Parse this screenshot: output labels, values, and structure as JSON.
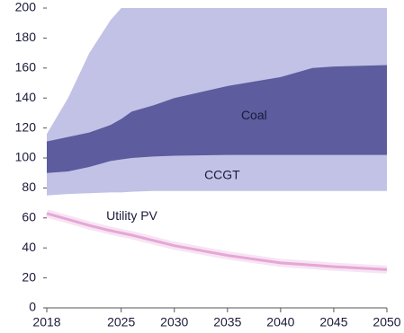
{
  "chart_data": {
    "type": "range_area",
    "x": [
      2018,
      2020,
      2022,
      2024,
      2025,
      2026,
      2028,
      2030,
      2035,
      2040,
      2043,
      2045,
      2050
    ],
    "series": [
      {
        "name": "CCGT",
        "color": "#c2c2e6",
        "low": [
          75,
          76,
          76.5,
          77,
          77,
          77.5,
          78,
          78,
          78,
          78,
          78,
          78,
          78
        ],
        "high": [
          116,
          140,
          170,
          192,
          200,
          200,
          200,
          200,
          200,
          200,
          200,
          200,
          200
        ]
      },
      {
        "name": "Coal",
        "color": "#5c5c9e",
        "low": [
          90,
          91,
          94,
          98,
          99,
          100,
          101,
          101.5,
          102,
          102,
          102,
          102,
          102
        ],
        "high": [
          111,
          114,
          117,
          122,
          126,
          131,
          135,
          140,
          148,
          154,
          160,
          161,
          162
        ]
      },
      {
        "name": "Utility PV",
        "color": "#e6a6d6",
        "type": "line",
        "values": [
          63,
          59,
          55,
          51.5,
          50,
          48.5,
          45,
          41.5,
          35,
          30,
          28.5,
          27.5,
          25.5
        ]
      }
    ],
    "xlim": [
      2018,
      2050
    ],
    "xticks": [
      2018,
      2025,
      2030,
      2035,
      2040,
      2045,
      2050
    ],
    "ylim": [
      0,
      200
    ],
    "yticks": [
      0,
      20,
      40,
      60,
      80,
      100,
      120,
      140,
      160,
      180,
      200
    ]
  }
}
